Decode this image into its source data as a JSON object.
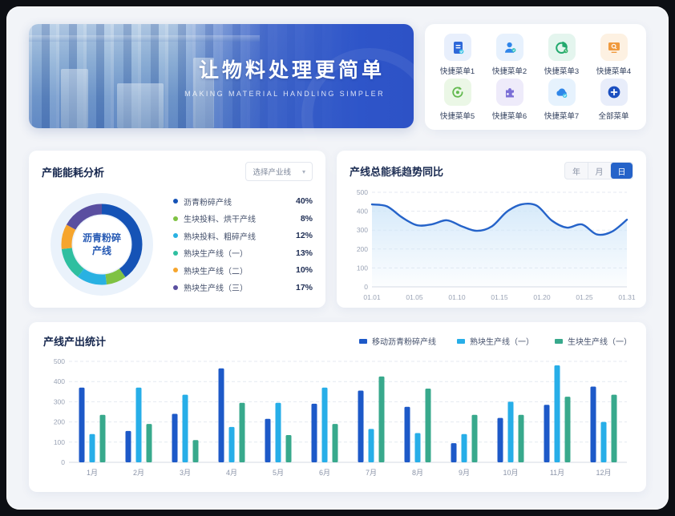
{
  "banner": {
    "title": "让物料处理更简单",
    "subtitle": "MAKING MATERIAL HANDLING SIMPLER"
  },
  "quick_menu": {
    "items": [
      {
        "label": "快捷菜单1",
        "icon": "document-icon",
        "color": "#2e68d9",
        "bg": "#e8effc"
      },
      {
        "label": "快捷菜单2",
        "icon": "user-icon",
        "color": "#2f85ea",
        "bg": "#e7f1fd"
      },
      {
        "label": "快捷菜单3",
        "icon": "pie-chart-icon",
        "color": "#23a96e",
        "bg": "#e4f5ee"
      },
      {
        "label": "快捷菜单4",
        "icon": "monitor-search-icon",
        "color": "#f09a3e",
        "bg": "#fdf1e2"
      },
      {
        "label": "快捷菜单5",
        "icon": "refresh-icon",
        "color": "#62b94e",
        "bg": "#ebf7e6"
      },
      {
        "label": "快捷菜单6",
        "icon": "puzzle-icon",
        "color": "#7b6fd6",
        "bg": "#eeebfa"
      },
      {
        "label": "快捷菜单7",
        "icon": "cloud-icon",
        "color": "#2f86e8",
        "bg": "#e6f2fd"
      },
      {
        "label": "全部菜单",
        "icon": "plus-icon",
        "color": "#1b4fc0",
        "bg": "#e8edfa"
      }
    ]
  },
  "energy_card": {
    "title": "产能能耗分析",
    "dropdown_value": "选择产业线",
    "center_line1": "沥青粉碎",
    "center_line2": "产线"
  },
  "trend_card": {
    "title": "产线总能耗趋势同比",
    "controls": [
      "年",
      "月",
      "日"
    ],
    "active_control": "日"
  },
  "output_card": {
    "title": "产线产出统计"
  },
  "chart_data": [
    {
      "type": "pie",
      "title": "产能能耗分析",
      "center_label": "沥青粉碎产线",
      "slices": [
        {
          "label": "沥青粉碎产线",
          "value": 40,
          "pct": "40%",
          "color": "#1553b6"
        },
        {
          "label": "生块投料、烘干产线",
          "value": 8,
          "pct": "8%",
          "color": "#7fc243"
        },
        {
          "label": "熟块投料、粗碎产线",
          "value": 12,
          "pct": "12%",
          "color": "#29b1e2"
        },
        {
          "label": "熟块生产线（一）",
          "value": 13,
          "pct": "13%",
          "color": "#2fbfa0"
        },
        {
          "label": "熟块生产线（二）",
          "value": 10,
          "pct": "10%",
          "color": "#f6a52d"
        },
        {
          "label": "熟块生产线（三）",
          "value": 17,
          "pct": "17%",
          "color": "#5a4fa0"
        }
      ]
    },
    {
      "type": "line",
      "title": "产线总能耗趋势同比",
      "x_labels": [
        "01.01",
        "01.05",
        "01.10",
        "01.15",
        "01.20",
        "01.25",
        "01.31"
      ],
      "values": [
        436,
        426,
        368,
        326,
        331,
        352,
        320,
        296,
        320,
        398,
        437,
        429,
        350,
        313,
        330,
        277,
        292,
        355
      ],
      "ylim": [
        0,
        500
      ],
      "yticks": [
        0,
        100,
        200,
        300,
        400,
        500
      ],
      "line_color": "#2563c9",
      "area_color": "#cfe6f9",
      "grid": true,
      "legend_position": "none"
    },
    {
      "type": "bar",
      "title": "产线产出统计",
      "categories": [
        "1月",
        "2月",
        "3月",
        "4月",
        "5月",
        "6月",
        "7月",
        "8月",
        "9月",
        "10月",
        "11月",
        "12月"
      ],
      "series": [
        {
          "name": "移动沥青粉碎产线",
          "color": "#1d59c8",
          "values": [
            370,
            155,
            240,
            465,
            215,
            290,
            355,
            275,
            95,
            220,
            285,
            375
          ]
        },
        {
          "name": "熟块生产线（一）",
          "color": "#27aee8",
          "values": [
            140,
            370,
            335,
            175,
            295,
            370,
            165,
            145,
            140,
            300,
            480,
            200
          ]
        },
        {
          "name": "生块生产线（一）",
          "color": "#38a98c",
          "values": [
            235,
            190,
            110,
            295,
            135,
            190,
            425,
            365,
            235,
            235,
            325,
            335
          ]
        }
      ],
      "ylim": [
        0,
        500
      ],
      "yticks": [
        0,
        100,
        200,
        300,
        400,
        500
      ],
      "grid": true,
      "legend_position": "top-right"
    }
  ]
}
